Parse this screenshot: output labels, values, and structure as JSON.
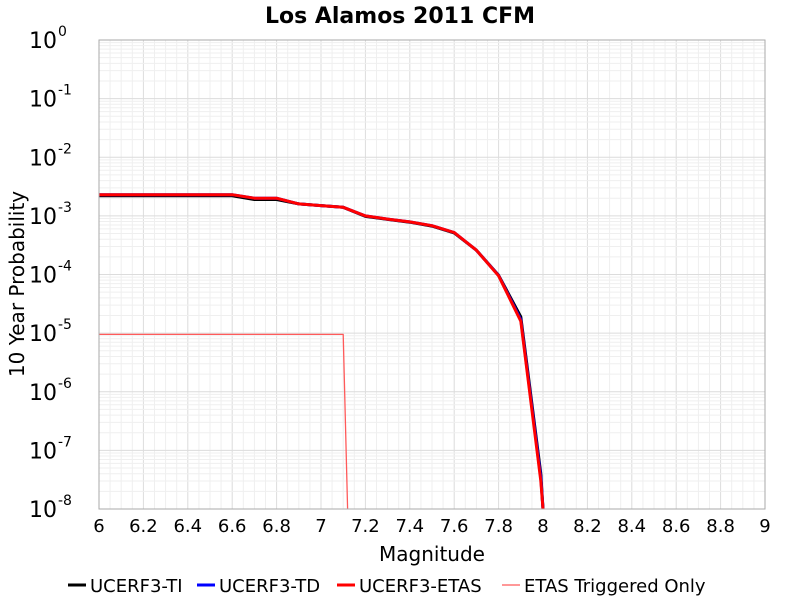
{
  "chart_data": {
    "type": "line",
    "title": "Los Alamos 2011 CFM",
    "xlabel": "Magnitude",
    "ylabel": "10 Year Probability",
    "xlim": [
      6,
      9
    ],
    "ylim": [
      1e-08,
      1
    ],
    "yscale": "log",
    "grid": true,
    "legend_position": "bottom",
    "x_ticks": [
      "6",
      "6.2",
      "6.4",
      "6.6",
      "6.8",
      "7",
      "7.2",
      "7.4",
      "7.6",
      "7.8",
      "8",
      "8.2",
      "8.4",
      "8.6",
      "8.8",
      "9"
    ],
    "y_ticks": [
      {
        "base": "10",
        "exp": "0"
      },
      {
        "base": "10",
        "exp": "-1"
      },
      {
        "base": "10",
        "exp": "-2"
      },
      {
        "base": "10",
        "exp": "-3"
      },
      {
        "base": "10",
        "exp": "-4"
      },
      {
        "base": "10",
        "exp": "-5"
      },
      {
        "base": "10",
        "exp": "-6"
      },
      {
        "base": "10",
        "exp": "-7"
      },
      {
        "base": "10",
        "exp": "-8"
      }
    ],
    "series": [
      {
        "name": "UCERF3-TI",
        "color": "#000000",
        "width": "thick",
        "x": [
          6.0,
          6.6,
          6.7,
          6.8,
          6.9,
          7.0,
          7.1,
          7.2,
          7.3,
          7.4,
          7.5,
          7.6,
          7.7,
          7.8,
          7.9,
          7.99,
          8.0
        ],
        "y": [
          0.0022,
          0.0022,
          0.0019,
          0.0019,
          0.0016,
          0.0015,
          0.0014,
          0.00098,
          0.00087,
          0.00078,
          0.00067,
          0.00051,
          0.00026,
          9.7e-05,
          1.9e-05,
          4e-08,
          1e-08
        ]
      },
      {
        "name": "UCERF3-TD",
        "color": "#0000ff",
        "width": "thick",
        "x": [
          6.0,
          6.6,
          6.7,
          6.8,
          6.9,
          7.0,
          7.1,
          7.2,
          7.3,
          7.4,
          7.5,
          7.6,
          7.7,
          7.8,
          7.9,
          7.99,
          8.0
        ],
        "y": [
          0.0023,
          0.0023,
          0.002,
          0.002,
          0.0016,
          0.0015,
          0.0014,
          0.001,
          0.00088,
          0.00079,
          0.00068,
          0.00052,
          0.00026,
          9.6e-05,
          1.7e-05,
          3.5e-08,
          1e-08
        ]
      },
      {
        "name": "UCERF3-ETAS",
        "color": "#ff0000",
        "width": "thick",
        "x": [
          6.0,
          6.6,
          6.7,
          6.8,
          6.9,
          7.0,
          7.1,
          7.2,
          7.3,
          7.4,
          7.5,
          7.6,
          7.7,
          7.8,
          7.9,
          7.99,
          8.0
        ],
        "y": [
          0.0023,
          0.0023,
          0.002,
          0.002,
          0.0016,
          0.0015,
          0.0014,
          0.001,
          0.00088,
          0.00079,
          0.00068,
          0.00052,
          0.00026,
          9.5e-05,
          1.6e-05,
          3e-08,
          1e-08
        ]
      },
      {
        "name": "ETAS Triggered Only",
        "color": "#ff5a5a",
        "width": "thin",
        "x": [
          6.0,
          7.1,
          7.12
        ],
        "y": [
          9.5e-06,
          9.5e-06,
          1e-08
        ]
      }
    ]
  }
}
